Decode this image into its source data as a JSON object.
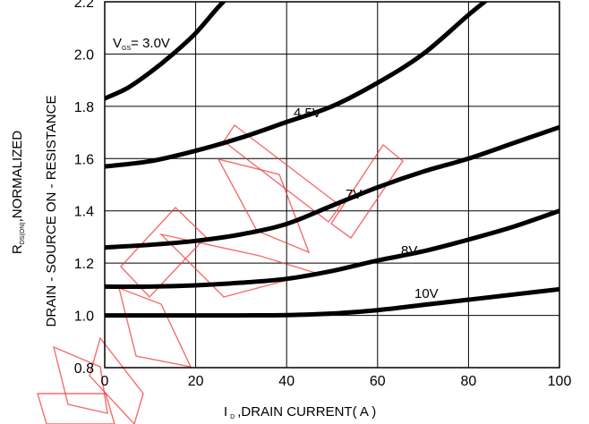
{
  "chart_data": {
    "type": "line",
    "xlabel_symbol": "I",
    "xlabel_subscript": "D",
    "xlabel": ",DRAIN CURRENT( A )",
    "ylabel_line1": "DRAIN - SOURCE ON - RESISTANCE",
    "ylabel_line2_symbol": "R",
    "ylabel_line2_subscript": "DS(ON)",
    "ylabel_line2": ",NORMALIZED",
    "xlim": [
      0,
      100
    ],
    "ylim": [
      0.8,
      2.2
    ],
    "xticks": [
      0,
      20,
      40,
      60,
      80,
      100
    ],
    "yticks": [
      "0.8",
      "1.0",
      "1.2",
      "1.4",
      "1.6",
      "1.8",
      "2.0",
      "2.2"
    ],
    "grid": true,
    "series": [
      {
        "name_symbol": "V",
        "name_subscript": "GS",
        "name": "= 3.0V",
        "x": [
          0,
          5,
          10,
          15,
          20,
          25,
          30
        ],
        "y": [
          1.83,
          1.87,
          1.93,
          2.0,
          2.08,
          2.18,
          2.27
        ]
      },
      {
        "name": "4.5V",
        "x": [
          0,
          10,
          20,
          30,
          40,
          50,
          60,
          70,
          80,
          85
        ],
        "y": [
          1.57,
          1.59,
          1.63,
          1.68,
          1.74,
          1.8,
          1.89,
          2.0,
          2.15,
          2.22
        ]
      },
      {
        "name": "7V",
        "x": [
          0,
          10,
          20,
          30,
          40,
          50,
          60,
          70,
          80,
          90,
          100
        ],
        "y": [
          1.26,
          1.27,
          1.285,
          1.31,
          1.35,
          1.42,
          1.49,
          1.55,
          1.6,
          1.66,
          1.72
        ]
      },
      {
        "name": "8V",
        "x": [
          0,
          10,
          20,
          30,
          40,
          50,
          60,
          70,
          80,
          90,
          100
        ],
        "y": [
          1.11,
          1.11,
          1.115,
          1.125,
          1.14,
          1.17,
          1.21,
          1.245,
          1.29,
          1.34,
          1.4
        ]
      },
      {
        "name": "10V",
        "x": [
          0,
          10,
          20,
          30,
          40,
          50,
          60,
          70,
          80,
          90,
          100
        ],
        "y": [
          1.0,
          1.0,
          1.0,
          1.0,
          1.001,
          1.007,
          1.02,
          1.04,
          1.06,
          1.08,
          1.1
        ]
      }
    ],
    "colors": {
      "line": "#000000",
      "grid": "#000000",
      "watermark": "#f03c3c"
    }
  }
}
